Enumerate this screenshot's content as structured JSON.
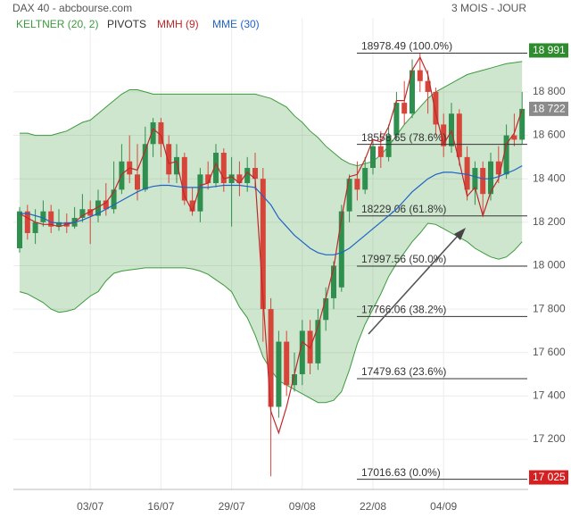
{
  "chart_data": {
    "type": "candlestick",
    "title": "DAX 40 - abcbourse.com",
    "subtitle": "3 MOIS - JOUR",
    "categories": [
      null,
      null,
      null,
      null,
      null,
      null,
      null,
      null,
      null,
      "03/07",
      null,
      null,
      null,
      null,
      null,
      null,
      null,
      null,
      "16/07",
      null,
      null,
      null,
      null,
      null,
      null,
      null,
      null,
      "29/07",
      null,
      null,
      null,
      null,
      null,
      null,
      null,
      null,
      "09/08",
      null,
      null,
      null,
      null,
      null,
      null,
      null,
      null,
      "22/08",
      null,
      null,
      null,
      null,
      null,
      null,
      null,
      null,
      "04/09",
      null,
      null,
      null,
      null,
      null,
      null,
      null,
      null,
      null,
      null
    ],
    "open": [
      18080,
      18250,
      18150,
      18200,
      18250,
      18180,
      18200,
      18180,
      18220,
      18260,
      18230,
      18300,
      18260,
      18350,
      18480,
      18420,
      18350,
      18560,
      18660,
      18560,
      18420,
      18500,
      18300,
      18250,
      18420,
      18380,
      18520,
      18380,
      18420,
      18380,
      18450,
      18400,
      17800,
      17350,
      17650,
      17450,
      17500,
      17700,
      17550,
      17750,
      17850,
      17900,
      18250,
      18400,
      18350,
      18450,
      18550,
      18500,
      18600,
      18750,
      18700,
      18900,
      18850,
      18800,
      18650,
      18550,
      18700,
      18500,
      18350,
      18450,
      18330,
      18480,
      18420,
      18600,
      18580
    ],
    "high": [
      18270,
      18280,
      18260,
      18300,
      18280,
      18260,
      18240,
      18270,
      18330,
      18300,
      18350,
      18380,
      18480,
      18560,
      18600,
      18560,
      18640,
      18680,
      18680,
      18600,
      18560,
      18520,
      18360,
      18450,
      18480,
      18560,
      18540,
      18500,
      18480,
      18500,
      18520,
      18450,
      17850,
      17700,
      17700,
      17600,
      17750,
      17750,
      17800,
      17900,
      18020,
      18280,
      18420,
      18480,
      18500,
      18580,
      18620,
      18650,
      18800,
      18850,
      18950,
      18978,
      18900,
      18820,
      18700,
      18750,
      18720,
      18550,
      18480,
      18480,
      18520,
      18550,
      18650,
      18700,
      18800
    ],
    "low": [
      18060,
      18120,
      18100,
      18180,
      18150,
      18160,
      18150,
      18170,
      18200,
      18100,
      18200,
      18230,
      18240,
      18330,
      18380,
      18300,
      18340,
      18500,
      18500,
      18380,
      18380,
      18280,
      18230,
      18200,
      18350,
      18360,
      18340,
      18180,
      18320,
      18340,
      18350,
      17650,
      17030,
      17300,
      17400,
      17420,
      17450,
      17500,
      17520,
      17700,
      17800,
      17880,
      18200,
      18300,
      18330,
      18420,
      18450,
      18480,
      18580,
      18650,
      18680,
      18800,
      18700,
      18600,
      18500,
      18520,
      18460,
      18300,
      18280,
      18229,
      18300,
      18380,
      18400,
      18550,
      18560
    ],
    "close": [
      18250,
      18150,
      18200,
      18250,
      18180,
      18200,
      18180,
      18220,
      18260,
      18230,
      18300,
      18260,
      18350,
      18480,
      18420,
      18350,
      18560,
      18660,
      18560,
      18420,
      18500,
      18300,
      18250,
      18420,
      18380,
      18520,
      18380,
      18420,
      18380,
      18450,
      18400,
      17800,
      17350,
      17650,
      17450,
      17500,
      17700,
      17550,
      17750,
      17850,
      18000,
      18250,
      18400,
      18350,
      18450,
      18550,
      18500,
      18600,
      18750,
      18700,
      18900,
      18850,
      18800,
      18650,
      18550,
      18700,
      18500,
      18350,
      18450,
      18330,
      18480,
      18420,
      18600,
      18580,
      18722
    ],
    "up_color": "#2f8f4e",
    "down_color": "#d6453a",
    "series": [
      {
        "name": "KELTNER (20, 2)",
        "color": "#3c9a3c",
        "upper": [
          18610,
          18610,
          18600,
          18600,
          18600,
          18610,
          18620,
          18640,
          18660,
          18670,
          18700,
          18730,
          18760,
          18790,
          18810,
          18810,
          18800,
          18790,
          18790,
          18790,
          18790,
          18790,
          18790,
          18790,
          18790,
          18790,
          18790,
          18790,
          18790,
          18790,
          18790,
          18780,
          18770,
          18750,
          18730,
          18690,
          18660,
          18620,
          18590,
          18550,
          18520,
          18490,
          18470,
          18460,
          18470,
          18480,
          18510,
          18550,
          18600,
          18650,
          18690,
          18730,
          18770,
          18800,
          18820,
          18840,
          18860,
          18880,
          18890,
          18900,
          18910,
          18920,
          18930,
          18935,
          18940
        ],
        "lower": [
          17880,
          17870,
          17850,
          17830,
          17800,
          17785,
          17790,
          17800,
          17830,
          17860,
          17880,
          17930,
          17965,
          17975,
          17980,
          17985,
          17990,
          17990,
          17990,
          17990,
          17990,
          17990,
          17985,
          17975,
          17960,
          17935,
          17910,
          17880,
          17810,
          17760,
          17680,
          17580,
          17520,
          17470,
          17450,
          17430,
          17410,
          17390,
          17370,
          17370,
          17380,
          17420,
          17520,
          17640,
          17730,
          17800,
          17870,
          17950,
          18010,
          18060,
          18110,
          18150,
          18195,
          18190,
          18170,
          18150,
          18130,
          18110,
          18080,
          18060,
          18040,
          18030,
          18040,
          18070,
          18110
        ]
      },
      {
        "name": "PIVOTS",
        "color": "#333333",
        "levels": [
          {
            "value": 18978.49,
            "label": "18978.49 (100.0%)"
          },
          {
            "value": 18558.65,
            "label": "18558.65 (78.6%)"
          },
          {
            "value": 18229.06,
            "label": "18229.06 (61.8%)"
          },
          {
            "value": 17997.56,
            "label": "17997.56 (50.0%)"
          },
          {
            "value": 17766.06,
            "label": "17766.06 (38.2%)"
          },
          {
            "value": 17479.63,
            "label": "17479.63 (23.6%)"
          },
          {
            "value": 17016.63,
            "label": "17016.63 (0.0%)"
          }
        ]
      },
      {
        "name": "MMH (9)",
        "color": "#c0282a",
        "values": [
          18240,
          18220,
          18200,
          18190,
          18190,
          18180,
          18190,
          18200,
          18230,
          18250,
          18270,
          18290,
          18340,
          18420,
          18450,
          18440,
          18530,
          18630,
          18600,
          18470,
          18480,
          18320,
          18250,
          18370,
          18380,
          18470,
          18400,
          18410,
          18380,
          18430,
          18400,
          17850,
          17330,
          17230,
          17350,
          17500,
          17650,
          17620,
          17720,
          17850,
          17990,
          18220,
          18410,
          18420,
          18490,
          18580,
          18570,
          18640,
          18760,
          18760,
          18900,
          18960,
          18880,
          18700,
          18560,
          18620,
          18480,
          18320,
          18360,
          18230,
          18340,
          18400,
          18560,
          18610,
          18720
        ]
      },
      {
        "name": "MME (30)",
        "color": "#1f63c6",
        "values": [
          18240,
          18240,
          18230,
          18220,
          18200,
          18195,
          18195,
          18200,
          18210,
          18225,
          18240,
          18260,
          18280,
          18300,
          18320,
          18340,
          18355,
          18365,
          18370,
          18370,
          18365,
          18360,
          18360,
          18360,
          18360,
          18365,
          18370,
          18370,
          18370,
          18365,
          18360,
          18320,
          18280,
          18220,
          18180,
          18140,
          18110,
          18080,
          18060,
          18050,
          18050,
          18060,
          18080,
          18110,
          18140,
          18170,
          18200,
          18230,
          18260,
          18300,
          18340,
          18370,
          18400,
          18420,
          18430,
          18430,
          18425,
          18420,
          18410,
          18400,
          18400,
          18410,
          18425,
          18440,
          18460
        ]
      }
    ],
    "price_markers": [
      {
        "value": 18991,
        "label": "18 991",
        "color": "#2e8b2e"
      },
      {
        "value": 18722,
        "label": "18 722",
        "color": "#8a8a8a"
      },
      {
        "value": 17025,
        "label": "17 025",
        "color": "#d42020"
      }
    ],
    "ylim": [
      16982,
      19141
    ],
    "yticks": [
      {
        "value": 17200,
        "label": "17 200"
      },
      {
        "value": 17400,
        "label": "17 400"
      },
      {
        "value": 17600,
        "label": "17 600"
      },
      {
        "value": 17800,
        "label": "17 800"
      },
      {
        "value": 18000,
        "label": "18 000"
      },
      {
        "value": 18200,
        "label": "18 200"
      },
      {
        "value": 18400,
        "label": "18 400"
      },
      {
        "value": 18600,
        "label": "18 600"
      },
      {
        "value": 18800,
        "label": "18 800"
      }
    ],
    "grid": true
  }
}
